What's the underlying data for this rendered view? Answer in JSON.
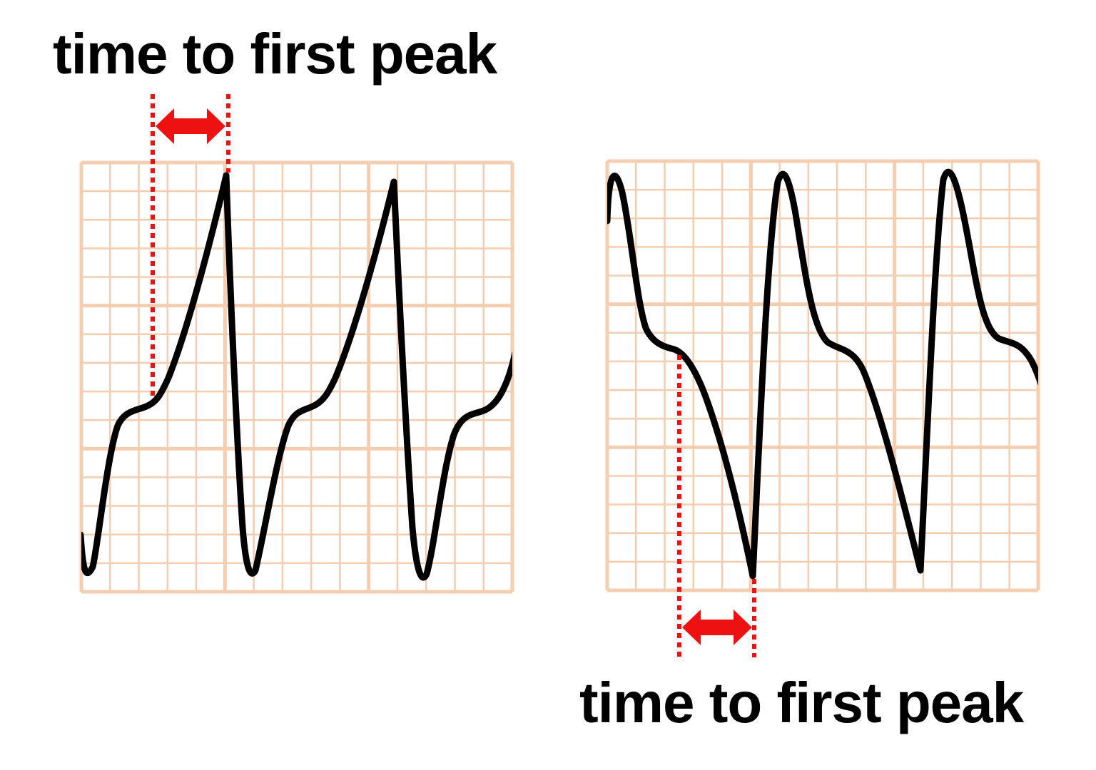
{
  "colors": {
    "grid": "#f5cdb0",
    "trace": "#000000",
    "marker": "#ee1111",
    "text": "#000000"
  },
  "panels": [
    {
      "id": "left",
      "label": "time to first peak",
      "marker_position": "above",
      "first_deflection": "positive"
    },
    {
      "id": "right",
      "label": "time to first peak",
      "marker_position": "below",
      "first_deflection": "negative"
    }
  ]
}
